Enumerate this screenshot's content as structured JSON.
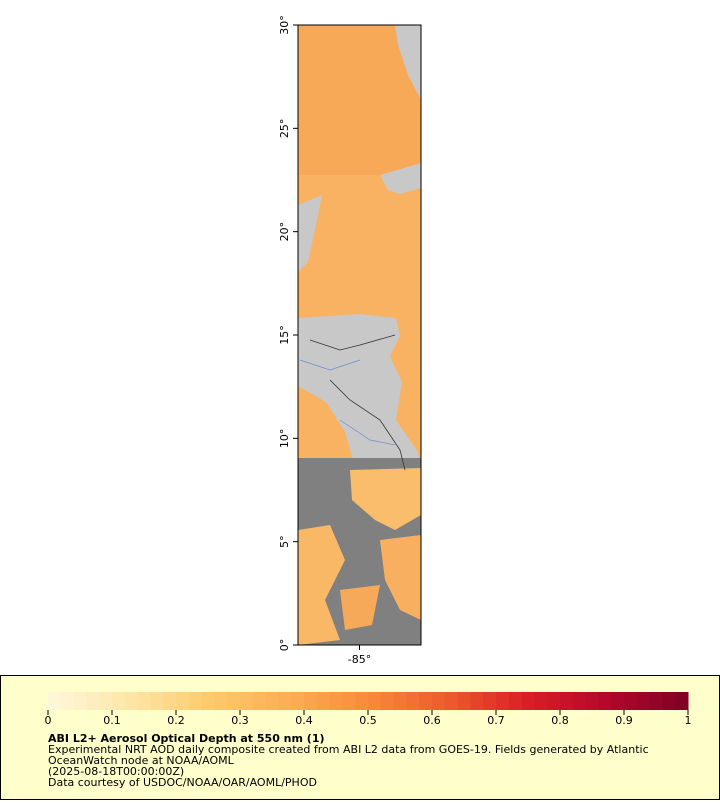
{
  "map": {
    "xlim": [
      -88,
      -82
    ],
    "ylim": [
      0,
      30
    ],
    "xticks": [
      {
        "value": -85,
        "label": "-85°"
      }
    ],
    "yticks": [
      {
        "value": 0,
        "label": "0°"
      },
      {
        "value": 5,
        "label": "5°"
      },
      {
        "value": 10,
        "label": "10°"
      },
      {
        "value": 15,
        "label": "15°"
      },
      {
        "value": 20,
        "label": "20°"
      },
      {
        "value": 25,
        "label": "25°"
      },
      {
        "value": 30,
        "label": "30°"
      }
    ]
  },
  "legend": {
    "colorbar": {
      "lim": [
        0,
        1
      ],
      "ticks": [
        0,
        0.1,
        0.2,
        0.3,
        0.4,
        0.5,
        0.6,
        0.7,
        0.8,
        0.9,
        1
      ],
      "colormap": [
        "#fff7dc",
        "#fde6a8",
        "#fdcb6e",
        "#fcae56",
        "#f98a3c",
        "#ee5a2c",
        "#d91e26",
        "#b3072a",
        "#800026"
      ]
    },
    "title": "ABI L2+ Aerosol Optical Depth at 550 nm (1)",
    "lines": [
      "Experimental NRT AOD daily composite created from ABI L2 data from GOES-19. Fields generated by Atlantic",
      "OceanWatch node at NOAA/AOML",
      "(2025-08-18T00:00:00Z)",
      "Data courtesy of USDOC/NOAA/OAR/AOML/PHOD"
    ]
  }
}
